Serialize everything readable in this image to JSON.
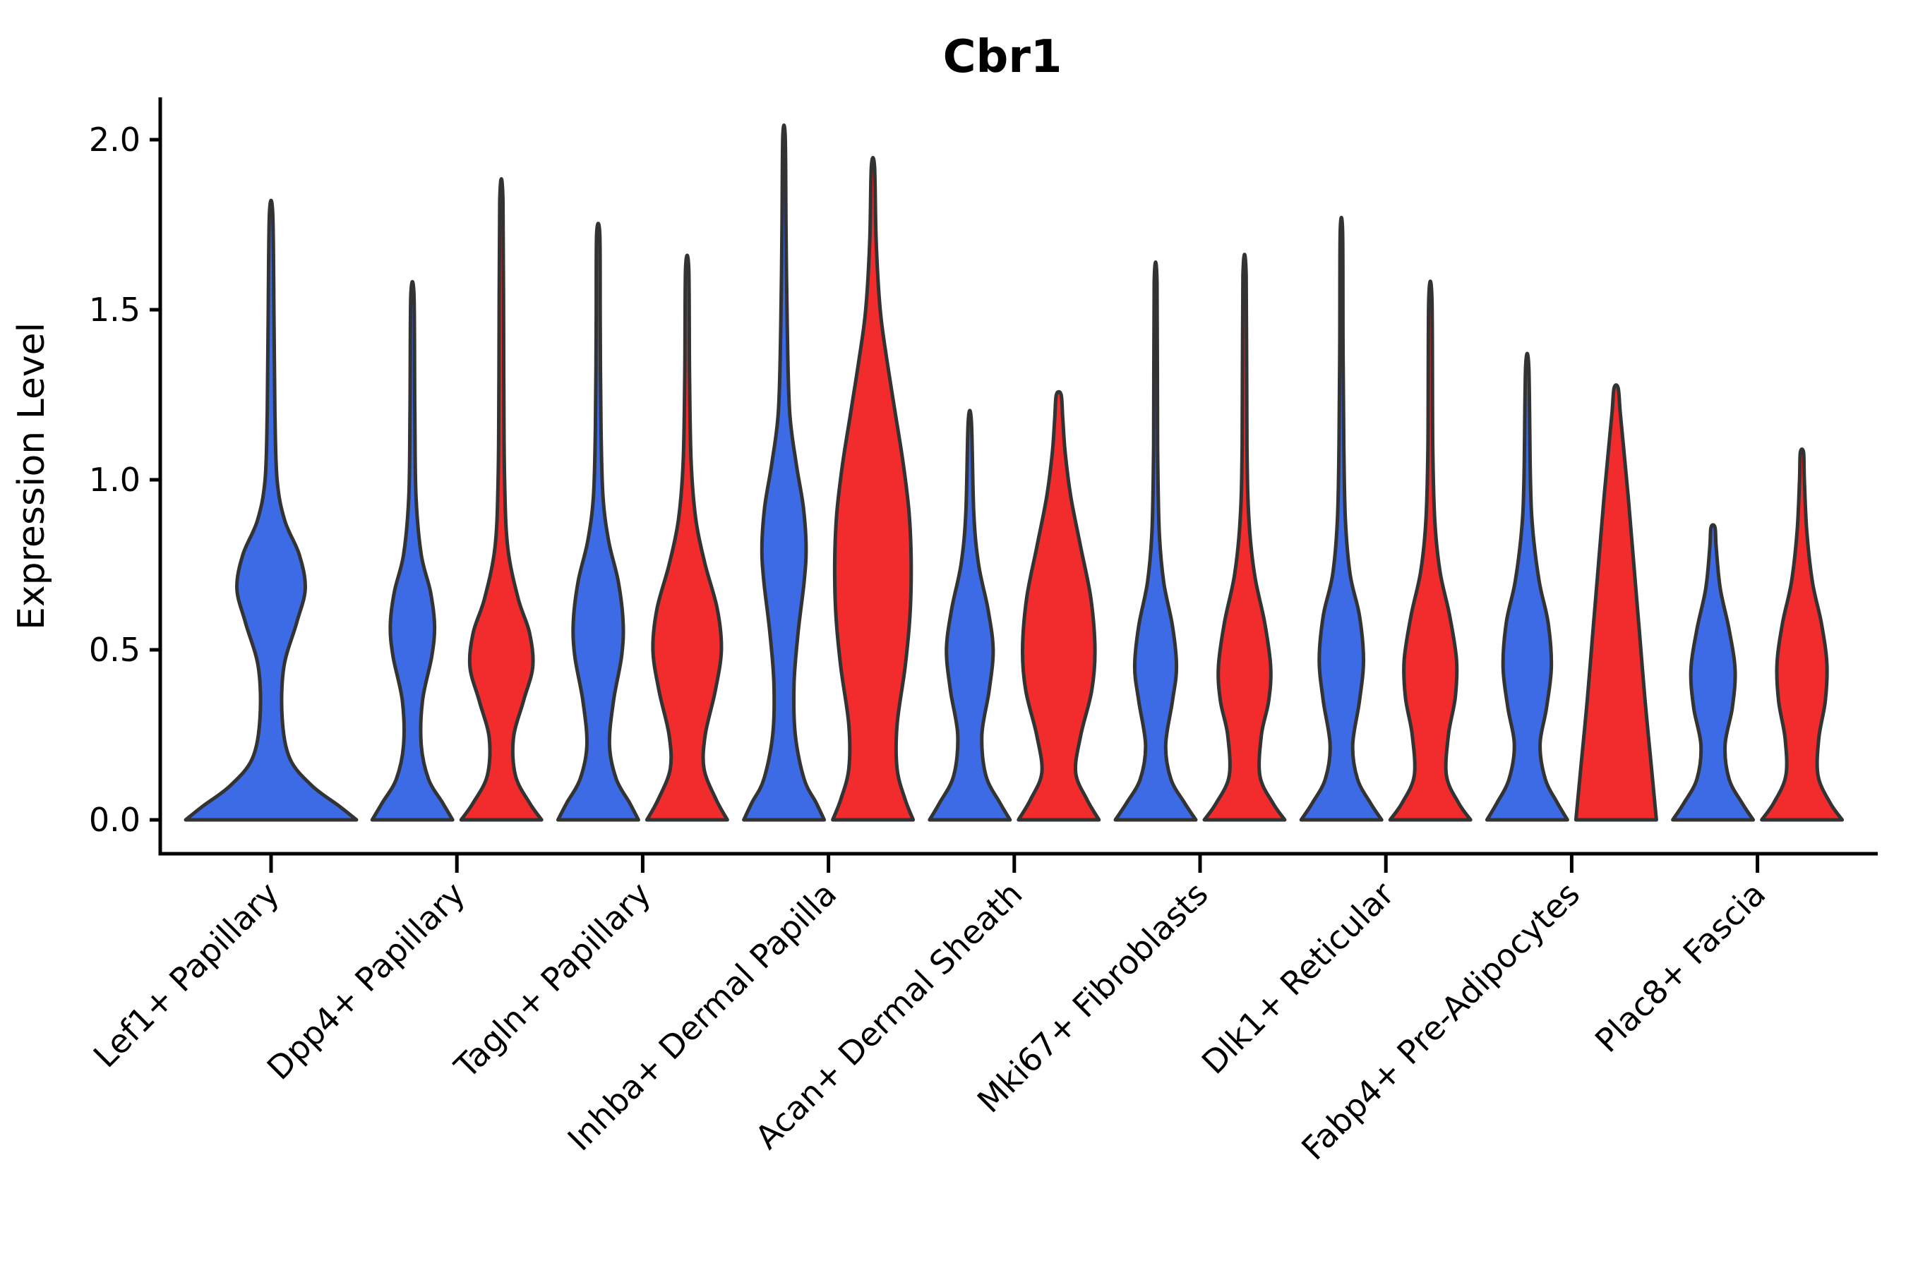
{
  "title": "Cbr1",
  "y_axis": {
    "label": "Expression Level",
    "ticks": [
      "0.0",
      "0.5",
      "1.0",
      "1.5",
      "2.0"
    ],
    "tick_values": [
      0.0,
      0.5,
      1.0,
      1.5,
      2.0
    ]
  },
  "colors": {
    "blue_fill": "#3D6BE5",
    "red_fill": "#F22C2C",
    "outline": "#333333",
    "axis": "#000000"
  },
  "chart_data": {
    "type": "violin",
    "title": "Cbr1",
    "xlabel": "",
    "ylabel": "Expression Level",
    "ylim": [
      -0.1,
      2.12
    ],
    "yticks": [
      0.0,
      0.5,
      1.0,
      1.5,
      2.0
    ],
    "grid": false,
    "legend": "none",
    "split_series": [
      {
        "name": "blue",
        "color": "#3D6BE5"
      },
      {
        "name": "red",
        "color": "#F22C2C"
      }
    ],
    "categories": [
      "Lef1+ Papillary",
      "Dpp4+ Papillary",
      "Tagln+ Papillary",
      "Inhba+ Dermal Papilla",
      "Acan+ Dermal Sheath",
      "Mki67+ Fibroblasts",
      "Dlk1+ Reticular",
      "Fabp4+ Pre-Adipocytes",
      "Plac8+ Fascia"
    ],
    "groups": [
      {
        "category": "Lef1+ Papillary",
        "violins": [
          {
            "series": "blue",
            "single": true,
            "max_expression": 1.78,
            "profile": [
              [
                0,
                1.0
              ],
              [
                0.04,
                0.8
              ],
              [
                0.1,
                0.48
              ],
              [
                0.18,
                0.22
              ],
              [
                0.3,
                0.13
              ],
              [
                0.45,
                0.15
              ],
              [
                0.58,
                0.3
              ],
              [
                0.68,
                0.4
              ],
              [
                0.78,
                0.33
              ],
              [
                0.88,
                0.16
              ],
              [
                1.0,
                0.07
              ],
              [
                1.2,
                0.045
              ],
              [
                1.45,
                0.035
              ],
              [
                1.78,
                0.02
              ]
            ]
          }
        ]
      },
      {
        "category": "Dpp4+ Papillary",
        "violins": [
          {
            "series": "blue",
            "single": false,
            "max_expression": 1.54,
            "profile": [
              [
                0,
                1.0
              ],
              [
                0.05,
                0.75
              ],
              [
                0.12,
                0.4
              ],
              [
                0.22,
                0.22
              ],
              [
                0.35,
                0.25
              ],
              [
                0.48,
                0.48
              ],
              [
                0.57,
                0.55
              ],
              [
                0.67,
                0.45
              ],
              [
                0.78,
                0.22
              ],
              [
                0.95,
                0.09
              ],
              [
                1.2,
                0.06
              ],
              [
                1.54,
                0.04
              ]
            ]
          },
          {
            "series": "red",
            "single": false,
            "max_expression": 1.82,
            "profile": [
              [
                0,
                1.0
              ],
              [
                0.05,
                0.7
              ],
              [
                0.13,
                0.35
              ],
              [
                0.24,
                0.3
              ],
              [
                0.35,
                0.55
              ],
              [
                0.45,
                0.78
              ],
              [
                0.55,
                0.7
              ],
              [
                0.65,
                0.42
              ],
              [
                0.8,
                0.16
              ],
              [
                1.0,
                0.08
              ],
              [
                1.3,
                0.06
              ],
              [
                1.82,
                0.04
              ]
            ]
          }
        ]
      },
      {
        "category": "Tagln+ Papillary",
        "violins": [
          {
            "series": "blue",
            "single": false,
            "max_expression": 1.72,
            "profile": [
              [
                0,
                1.0
              ],
              [
                0.05,
                0.78
              ],
              [
                0.12,
                0.45
              ],
              [
                0.22,
                0.28
              ],
              [
                0.35,
                0.38
              ],
              [
                0.48,
                0.58
              ],
              [
                0.58,
                0.62
              ],
              [
                0.7,
                0.5
              ],
              [
                0.82,
                0.26
              ],
              [
                0.95,
                0.12
              ],
              [
                1.15,
                0.07
              ],
              [
                1.45,
                0.05
              ],
              [
                1.72,
                0.04
              ]
            ]
          },
          {
            "series": "red",
            "single": false,
            "max_expression": 1.62,
            "profile": [
              [
                0,
                1.0
              ],
              [
                0.06,
                0.72
              ],
              [
                0.15,
                0.42
              ],
              [
                0.25,
                0.45
              ],
              [
                0.38,
                0.7
              ],
              [
                0.5,
                0.85
              ],
              [
                0.62,
                0.75
              ],
              [
                0.75,
                0.45
              ],
              [
                0.88,
                0.22
              ],
              [
                1.05,
                0.1
              ],
              [
                1.3,
                0.06
              ],
              [
                1.62,
                0.04
              ]
            ]
          }
        ]
      },
      {
        "category": "Inhba+ Dermal Papilla",
        "violins": [
          {
            "series": "blue",
            "single": false,
            "max_expression": 2.01,
            "profile": [
              [
                0,
                1.0
              ],
              [
                0.05,
                0.8
              ],
              [
                0.12,
                0.5
              ],
              [
                0.25,
                0.28
              ],
              [
                0.4,
                0.25
              ],
              [
                0.55,
                0.35
              ],
              [
                0.7,
                0.5
              ],
              [
                0.8,
                0.55
              ],
              [
                0.92,
                0.48
              ],
              [
                1.05,
                0.3
              ],
              [
                1.2,
                0.14
              ],
              [
                1.45,
                0.08
              ],
              [
                1.75,
                0.05
              ],
              [
                2.01,
                0.03
              ]
            ]
          },
          {
            "series": "red",
            "single": false,
            "max_expression": 1.92,
            "profile": [
              [
                0,
                1.0
              ],
              [
                0.06,
                0.8
              ],
              [
                0.15,
                0.6
              ],
              [
                0.28,
                0.6
              ],
              [
                0.45,
                0.8
              ],
              [
                0.6,
                0.92
              ],
              [
                0.75,
                0.95
              ],
              [
                0.9,
                0.9
              ],
              [
                1.05,
                0.75
              ],
              [
                1.2,
                0.55
              ],
              [
                1.35,
                0.35
              ],
              [
                1.5,
                0.18
              ],
              [
                1.7,
                0.08
              ],
              [
                1.92,
                0.04
              ]
            ]
          }
        ]
      },
      {
        "category": "Acan+ Dermal Sheath",
        "violins": [
          {
            "series": "blue",
            "single": false,
            "max_expression": 1.17,
            "profile": [
              [
                0,
                1.0
              ],
              [
                0.05,
                0.75
              ],
              [
                0.13,
                0.4
              ],
              [
                0.25,
                0.3
              ],
              [
                0.38,
                0.48
              ],
              [
                0.5,
                0.58
              ],
              [
                0.62,
                0.45
              ],
              [
                0.75,
                0.22
              ],
              [
                0.9,
                0.1
              ],
              [
                1.17,
                0.04
              ]
            ]
          },
          {
            "series": "red",
            "single": false,
            "max_expression": 1.25,
            "profile": [
              [
                0,
                1.0
              ],
              [
                0.06,
                0.7
              ],
              [
                0.14,
                0.42
              ],
              [
                0.25,
                0.55
              ],
              [
                0.38,
                0.82
              ],
              [
                0.5,
                0.9
              ],
              [
                0.65,
                0.8
              ],
              [
                0.8,
                0.55
              ],
              [
                0.95,
                0.3
              ],
              [
                1.08,
                0.16
              ],
              [
                1.18,
                0.1
              ],
              [
                1.25,
                0.06
              ]
            ]
          }
        ]
      },
      {
        "category": "Mki67+ Fibroblasts",
        "violins": [
          {
            "series": "blue",
            "single": false,
            "max_expression": 1.58,
            "profile": [
              [
                0,
                1.0
              ],
              [
                0.05,
                0.72
              ],
              [
                0.12,
                0.38
              ],
              [
                0.22,
                0.25
              ],
              [
                0.35,
                0.42
              ],
              [
                0.45,
                0.52
              ],
              [
                0.57,
                0.42
              ],
              [
                0.7,
                0.2
              ],
              [
                0.85,
                0.09
              ],
              [
                1.1,
                0.05
              ],
              [
                1.58,
                0.035
              ]
            ]
          },
          {
            "series": "red",
            "single": false,
            "max_expression": 1.6,
            "profile": [
              [
                0,
                1.0
              ],
              [
                0.05,
                0.7
              ],
              [
                0.13,
                0.38
              ],
              [
                0.25,
                0.42
              ],
              [
                0.35,
                0.6
              ],
              [
                0.45,
                0.65
              ],
              [
                0.58,
                0.5
              ],
              [
                0.72,
                0.25
              ],
              [
                0.88,
                0.11
              ],
              [
                1.1,
                0.06
              ],
              [
                1.6,
                0.04
              ]
            ]
          }
        ]
      },
      {
        "category": "Dlk1+ Reticular",
        "violins": [
          {
            "series": "blue",
            "single": false,
            "max_expression": 1.73,
            "profile": [
              [
                0,
                1.0
              ],
              [
                0.05,
                0.72
              ],
              [
                0.12,
                0.4
              ],
              [
                0.22,
                0.28
              ],
              [
                0.35,
                0.45
              ],
              [
                0.47,
                0.55
              ],
              [
                0.6,
                0.45
              ],
              [
                0.72,
                0.22
              ],
              [
                0.88,
                0.1
              ],
              [
                1.1,
                0.06
              ],
              [
                1.4,
                0.04
              ],
              [
                1.73,
                0.03
              ]
            ]
          },
          {
            "series": "red",
            "single": false,
            "max_expression": 1.53,
            "profile": [
              [
                0,
                1.0
              ],
              [
                0.05,
                0.7
              ],
              [
                0.13,
                0.4
              ],
              [
                0.25,
                0.45
              ],
              [
                0.36,
                0.62
              ],
              [
                0.47,
                0.65
              ],
              [
                0.6,
                0.48
              ],
              [
                0.73,
                0.24
              ],
              [
                0.88,
                0.11
              ],
              [
                1.1,
                0.06
              ],
              [
                1.53,
                0.04
              ]
            ]
          }
        ]
      },
      {
        "category": "Fabp4+ Pre-Adipocytes",
        "violins": [
          {
            "series": "blue",
            "single": false,
            "max_expression": 1.33,
            "profile": [
              [
                0,
                1.0
              ],
              [
                0.05,
                0.75
              ],
              [
                0.12,
                0.45
              ],
              [
                0.22,
                0.32
              ],
              [
                0.33,
                0.48
              ],
              [
                0.45,
                0.6
              ],
              [
                0.58,
                0.52
              ],
              [
                0.7,
                0.3
              ],
              [
                0.85,
                0.14
              ],
              [
                1.0,
                0.08
              ],
              [
                1.33,
                0.04
              ]
            ]
          },
          {
            "series": "red",
            "single": false,
            "max_expression": 1.27,
            "profile": [
              [
                0,
                1.0
              ],
              [
                0.15,
                0.88
              ],
              [
                0.35,
                0.72
              ],
              [
                0.55,
                0.58
              ],
              [
                0.75,
                0.44
              ],
              [
                0.95,
                0.3
              ],
              [
                1.1,
                0.18
              ],
              [
                1.2,
                0.1
              ],
              [
                1.27,
                0.05
              ]
            ]
          }
        ]
      },
      {
        "category": "Plac8+ Fascia",
        "violins": [
          {
            "series": "blue",
            "single": false,
            "max_expression": 0.86,
            "profile": [
              [
                0,
                1.0
              ],
              [
                0.05,
                0.72
              ],
              [
                0.12,
                0.4
              ],
              [
                0.22,
                0.3
              ],
              [
                0.33,
                0.48
              ],
              [
                0.44,
                0.55
              ],
              [
                0.56,
                0.4
              ],
              [
                0.68,
                0.18
              ],
              [
                0.8,
                0.08
              ],
              [
                0.86,
                0.05
              ]
            ]
          },
          {
            "series": "red",
            "single": false,
            "max_expression": 1.08,
            "profile": [
              [
                0,
                1.0
              ],
              [
                0.05,
                0.7
              ],
              [
                0.13,
                0.4
              ],
              [
                0.24,
                0.42
              ],
              [
                0.35,
                0.58
              ],
              [
                0.46,
                0.62
              ],
              [
                0.58,
                0.48
              ],
              [
                0.7,
                0.26
              ],
              [
                0.85,
                0.12
              ],
              [
                1.0,
                0.06
              ],
              [
                1.08,
                0.04
              ]
            ]
          }
        ]
      }
    ]
  }
}
